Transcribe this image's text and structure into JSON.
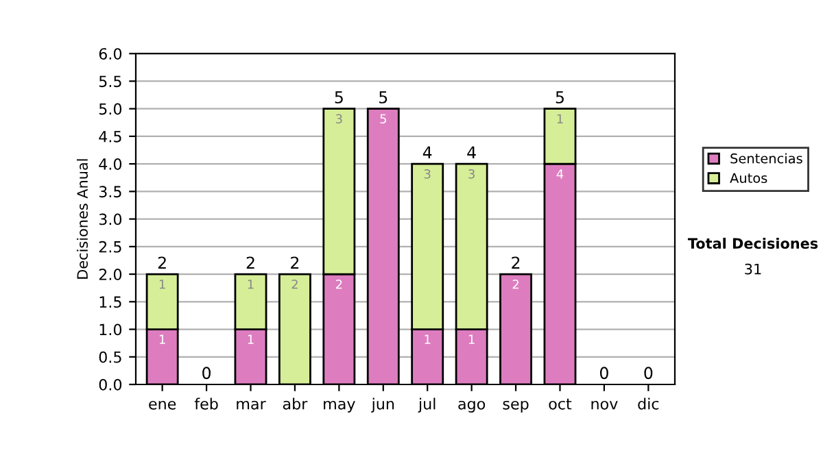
{
  "chart_data": {
    "type": "bar",
    "ylabel": "Decisiones Anual",
    "stacked": true,
    "categories": [
      "ene",
      "feb",
      "mar",
      "abr",
      "may",
      "jun",
      "jul",
      "ago",
      "sep",
      "oct",
      "nov",
      "dic"
    ],
    "series": [
      {
        "name": "Sentencias",
        "color": "#dd7dbf",
        "values": [
          1,
          0,
          1,
          0,
          2,
          5,
          1,
          1,
          2,
          4,
          0,
          0
        ],
        "value_labels": [
          "1",
          null,
          "1",
          null,
          "2",
          "5",
          "1",
          "1",
          "2",
          "4",
          null,
          null
        ]
      },
      {
        "name": "Autos",
        "color": "#d6ee98",
        "values": [
          1,
          0,
          1,
          2,
          3,
          0,
          3,
          3,
          0,
          1,
          0,
          0
        ],
        "value_labels": [
          "1",
          null,
          "1",
          "2",
          "3",
          null,
          "3",
          "3",
          null,
          "1",
          null,
          null
        ]
      }
    ],
    "totals": [
      "2",
      "0",
      "2",
      "2",
      "5",
      "5",
      "4",
      "4",
      "2",
      "5",
      "0",
      "0"
    ],
    "ylim": [
      0,
      6
    ],
    "yticks": [
      {
        "value": 0,
        "label": "0.0"
      },
      {
        "value": 0.5,
        "label": "0.5"
      },
      {
        "value": 1,
        "label": "1.0"
      },
      {
        "value": 1.5,
        "label": "1.5"
      },
      {
        "value": 2,
        "label": "2.0"
      },
      {
        "value": 2.5,
        "label": "2.5"
      },
      {
        "value": 3,
        "label": "3.0"
      },
      {
        "value": 3.5,
        "label": "3.5"
      },
      {
        "value": 4,
        "label": "4.0"
      },
      {
        "value": 4.5,
        "label": "4.5"
      },
      {
        "value": 5,
        "label": "5.0"
      },
      {
        "value": 5.5,
        "label": "5.5"
      },
      {
        "value": 6,
        "label": "6.0"
      }
    ],
    "grid": "y",
    "legend": "right",
    "annotations": [
      "Total Decisiones",
      "31"
    ]
  }
}
